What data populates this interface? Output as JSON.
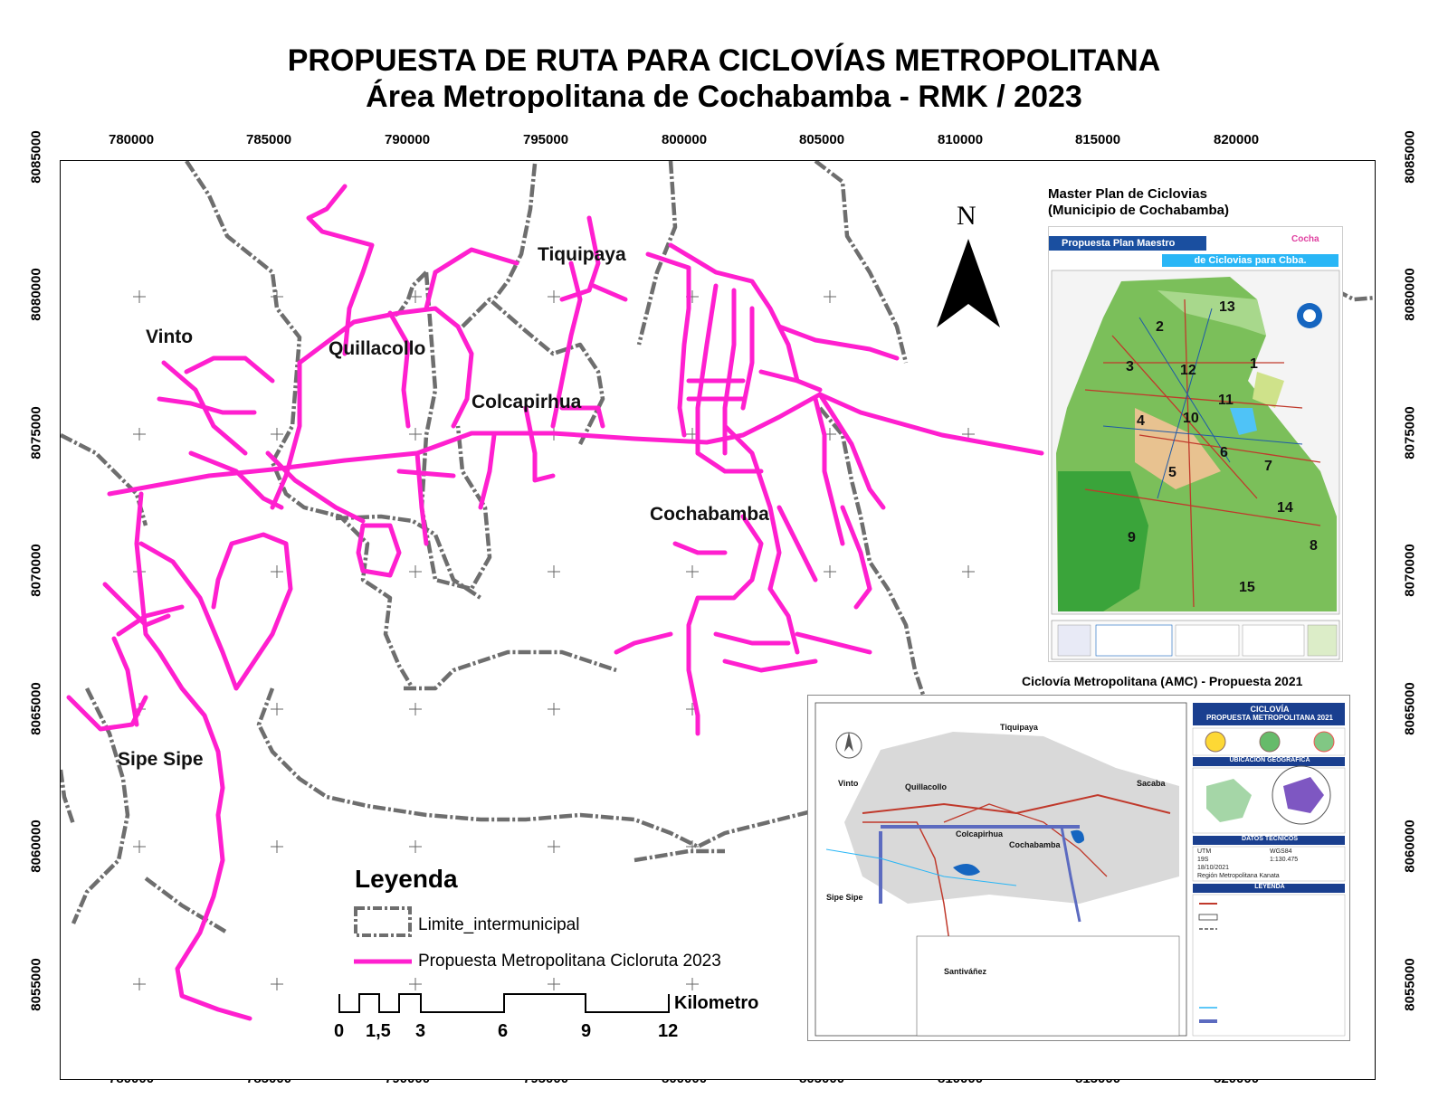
{
  "title": {
    "line1": "PROPUESTA DE RUTA PARA CICLOVÍAS METROPOLITANA",
    "line2": "Área Metropolitana de Cochabamba - RMK / 2023"
  },
  "axes": {
    "x_ticks": [
      "780000",
      "785000",
      "790000",
      "795000",
      "800000",
      "805000",
      "810000",
      "815000",
      "820000"
    ],
    "y_ticks": [
      "8085000",
      "8080000",
      "8075000",
      "8070000",
      "8065000",
      "8060000",
      "8055000"
    ]
  },
  "places": {
    "vinto": "Vinto",
    "quillacollo": "Quillacollo",
    "colcapirhua": "Colcapirhua",
    "tiquipaya": "Tiquipaya",
    "cochabamba": "Cochabamba",
    "sipe_sipe": "Sipe Sipe"
  },
  "north_label": "N",
  "inset1": {
    "title_line1": "Master Plan de Ciclovias",
    "title_line2": "(Municipio de Cochabamba)",
    "banner1": "Propuesta  Plan Maestro",
    "banner2": "de Ciclovias para Cbba.",
    "logo_text": "Cocha",
    "districts": [
      "1",
      "2",
      "3",
      "4",
      "5",
      "6",
      "7",
      "8",
      "9",
      "10",
      "11",
      "12",
      "13",
      "14",
      "15"
    ]
  },
  "inset2": {
    "title": "Ciclovía Metropolitana (AMC) - Propuesta 2021",
    "header1": "CICLOVÍA",
    "header2": "PROPUESTA METROPOLITANA 2021",
    "section_location": "UBICACIÓN GEOGRÁFICA",
    "section_tech": "DATOS TÉCNICOS",
    "section_legend": "LEYENDA",
    "places": [
      "Tiquipaya",
      "Vinto",
      "Quillacollo",
      "Sacaba",
      "Colcapirhua",
      "Cochabamba",
      "Sipe Sipe",
      "Santiváñez"
    ],
    "tech": {
      "proyeccion": "UTM",
      "datum": "WGS84",
      "zona": "19S",
      "escala": "1:130.475",
      "fecha": "18/10/2021",
      "fuente": "Región Metropolitana Kanata"
    }
  },
  "legend": {
    "title": "Leyenda",
    "item1": "Limite_intermunicipal",
    "item2": "Propuesta Metropolitana Cicloruta 2023"
  },
  "scale": {
    "labels": [
      "0",
      "1,5",
      "3",
      "6",
      "9",
      "12"
    ],
    "unit": "Kilometro"
  },
  "colors": {
    "route": "#ff1fcf",
    "boundary": "#6e6e6e"
  }
}
